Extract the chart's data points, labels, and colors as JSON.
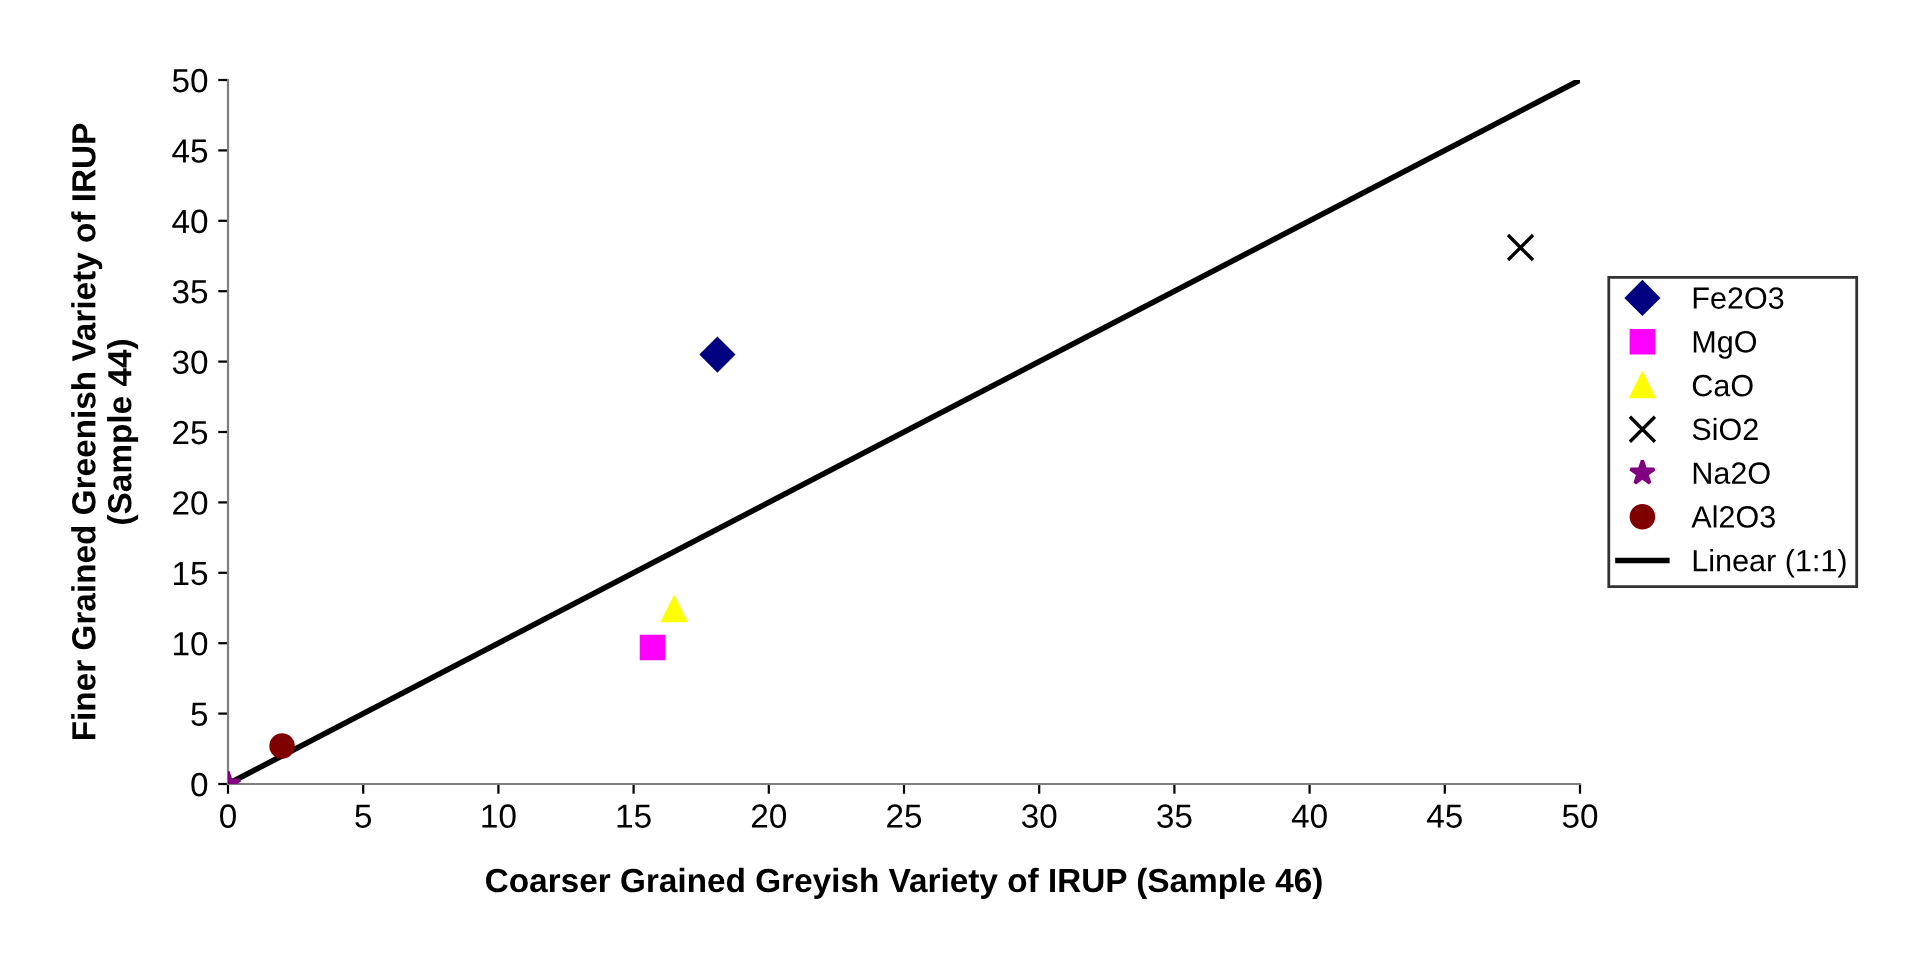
{
  "chart_data": {
    "type": "scatter",
    "xlabel": "Coarser Grained Greyish Variety of IRUP (Sample 46)",
    "ylabel": "Finer Grained Greenish Variety of IRUP\n(Sample 44)",
    "xlim": [
      0,
      50
    ],
    "ylim": [
      0,
      50
    ],
    "xticks": [
      0,
      5,
      10,
      15,
      20,
      25,
      30,
      35,
      40,
      45,
      50
    ],
    "yticks": [
      0,
      5,
      10,
      15,
      20,
      25,
      30,
      35,
      40,
      45,
      50
    ],
    "grid": false,
    "legend": "right",
    "series": [
      {
        "name": "Fe2O3",
        "color": "#000080",
        "marker": "diamond",
        "x": [
          18.1
        ],
        "values": [
          30.5
        ]
      },
      {
        "name": "MgO",
        "color": "#ff00ff",
        "marker": "square",
        "x": [
          15.7
        ],
        "values": [
          9.7
        ]
      },
      {
        "name": "CaO",
        "color": "#ffff00",
        "marker": "triangle",
        "x": [
          16.5
        ],
        "values": [
          12.4
        ]
      },
      {
        "name": "SiO2",
        "color": "#000000",
        "marker": "cross",
        "x": [
          47.8
        ],
        "values": [
          38.1
        ]
      },
      {
        "name": "Na2O",
        "color": "#800080",
        "marker": "star",
        "x": [
          0
        ],
        "values": [
          0
        ]
      },
      {
        "name": "Al2O3",
        "color": "#800000",
        "marker": "circle",
        "x": [
          2.0
        ],
        "values": [
          2.7
        ]
      },
      {
        "name": "Linear (1:1)",
        "type": "line",
        "color": "#000000",
        "marker": "none",
        "line_style": "solid",
        "x": [
          0,
          50
        ],
        "values": [
          0,
          50
        ]
      }
    ]
  }
}
